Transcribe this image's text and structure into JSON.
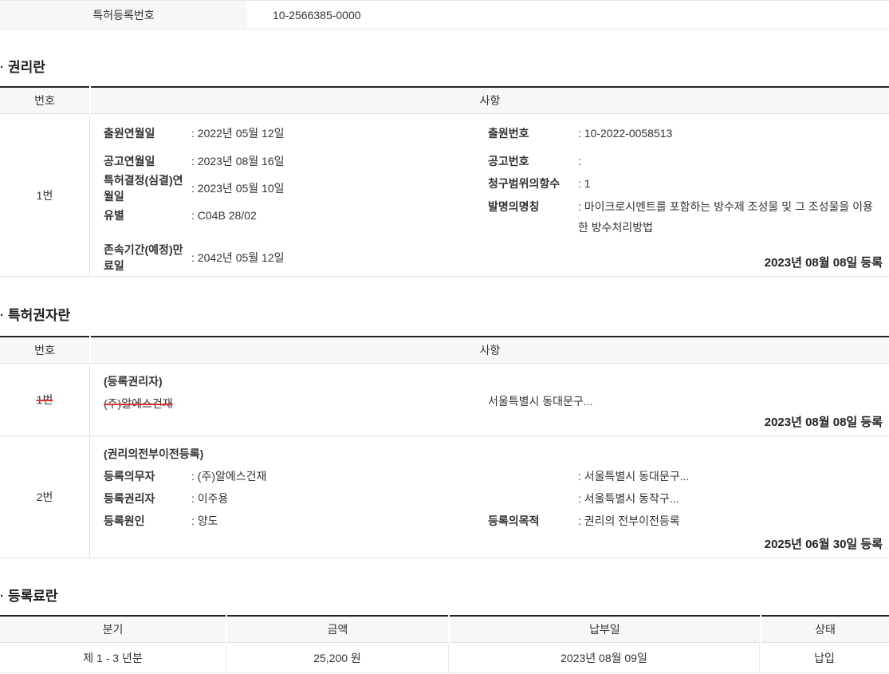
{
  "bullet": "·",
  "colors": {
    "strike_red": "#e03131",
    "header_bg": "#f7f7f5",
    "border_dark": "#242424"
  },
  "top_row": {
    "label": "특허등록번호",
    "value": "10-2566385-0000"
  },
  "rights": {
    "title": "권리란",
    "col_no": "번호",
    "col_detail": "사항",
    "row_no": "1번",
    "left": [
      {
        "label": "출원연월일",
        "value": ": 2022년 05월 12일"
      },
      {
        "label": "공고연월일",
        "value": ": 2023년 08월 16일"
      },
      {
        "label": "특허결정(심결)연월일",
        "value": ": 2023년 05월 10일"
      },
      {
        "label": "유별",
        "value": ": C04B 28/02"
      }
    ],
    "expiry": {
      "label": "존속기간(예정)만료일",
      "value": ": 2042년 05월 12일"
    },
    "right": [
      {
        "label": "출원번호",
        "value": ": 10-2022-0058513"
      },
      {
        "label": "공고번호",
        "value": ":"
      },
      {
        "label": "청구범위의항수",
        "value": ": 1"
      },
      {
        "label": "발명의명칭",
        "value": ": 마이크로시멘트를 포함하는 방수제 조성물 및 그 조성물을 이용한 방수처리방법"
      }
    ],
    "registered": "2023년 08월 08일 등록"
  },
  "holders": {
    "title": "특허권자란",
    "col_no": "번호",
    "col_detail": "사항",
    "row1": {
      "no": "1번",
      "heading": "(등록권리자)",
      "name": "(주)알에스건재",
      "address": "서울특별시 동대문구...",
      "registered": "2023년 08월 08일 등록"
    },
    "row2": {
      "no": "2번",
      "heading": "(권리의전부이전등록)",
      "lines": [
        {
          "label": "등록의무자",
          "value": ": (주)알에스건재",
          "right_label": "",
          "right_value": ": 서울특별시 동대문구..."
        },
        {
          "label": "등록권리자",
          "value": ": 이주용",
          "right_label": "",
          "right_value": ": 서울특별시 동작구..."
        },
        {
          "label": "등록원인",
          "value": ": 양도",
          "right_label": "등록의목적",
          "right_value": ": 권리의 전부이전등록"
        }
      ],
      "registered": "2025년 06월 30일 등록"
    }
  },
  "fees": {
    "title": "등록료란",
    "headers": [
      "분기",
      "금액",
      "납부일",
      "상태"
    ],
    "row": [
      "제 1 - 3 년분",
      "25,200 원",
      "2023년 08월 09일",
      "납입"
    ]
  }
}
